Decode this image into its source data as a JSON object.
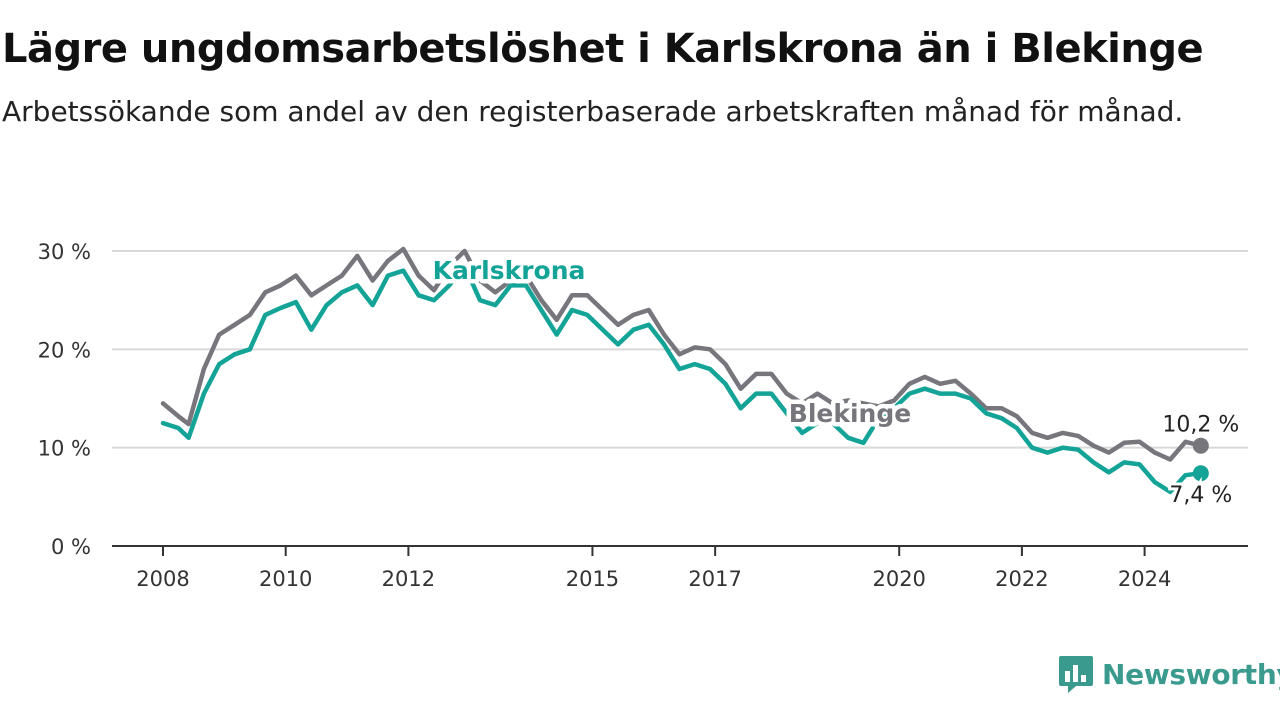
{
  "title": "Lägre ungdomsarbetslöshet i Karlskrona än i Blekinge",
  "subtitle": "Arbetssökande som andel av den registerbaserade arbetskraften månad för månad.",
  "brand": "Newsworthy",
  "colors": {
    "karlskrona": "#13a397",
    "blekinge": "#77767c",
    "grid": "#d9d9d9",
    "axis": "#333333"
  },
  "chart_data": {
    "type": "line",
    "title": "Lägre ungdomsarbetslöshet i Karlskrona än i Blekinge",
    "xlabel": "",
    "ylabel": "",
    "x_ticks": [
      "2008",
      "2010",
      "2012",
      "2015",
      "2017",
      "2020",
      "2022",
      "2024"
    ],
    "y_ticks": [
      "0 %",
      "10 %",
      "20 %",
      "30 %"
    ],
    "ylim": [
      0,
      30
    ],
    "grid": true,
    "series": [
      {
        "name": "Blekinge",
        "color": "#77767c",
        "end_label": "10,2 %",
        "points": [
          [
            "2008-01",
            14.5
          ],
          [
            "2008-04",
            13.2
          ],
          [
            "2008-06",
            12.4
          ],
          [
            "2008-09",
            18
          ],
          [
            "2008-12",
            21.5
          ],
          [
            "2009-03",
            22.5
          ],
          [
            "2009-06",
            23.5
          ],
          [
            "2009-09",
            25.8
          ],
          [
            "2009-12",
            26.5
          ],
          [
            "2010-03",
            27.5
          ],
          [
            "2010-06",
            25.5
          ],
          [
            "2010-09",
            26.5
          ],
          [
            "2010-12",
            27.5
          ],
          [
            "2011-03",
            29.5
          ],
          [
            "2011-06",
            27
          ],
          [
            "2011-09",
            29
          ],
          [
            "2011-12",
            30.2
          ],
          [
            "2012-03",
            27.5
          ],
          [
            "2012-06",
            26
          ],
          [
            "2012-09",
            28.5
          ],
          [
            "2012-12",
            30
          ],
          [
            "2013-03",
            27
          ],
          [
            "2013-06",
            25.8
          ],
          [
            "2013-09",
            27
          ],
          [
            "2013-12",
            27.5
          ],
          [
            "2014-03",
            25
          ],
          [
            "2014-06",
            23
          ],
          [
            "2014-09",
            25.5
          ],
          [
            "2014-12",
            25.5
          ],
          [
            "2015-03",
            24
          ],
          [
            "2015-06",
            22.5
          ],
          [
            "2015-09",
            23.5
          ],
          [
            "2015-12",
            24
          ],
          [
            "2016-03",
            21.5
          ],
          [
            "2016-06",
            19.5
          ],
          [
            "2016-09",
            20.2
          ],
          [
            "2016-12",
            20
          ],
          [
            "2017-03",
            18.5
          ],
          [
            "2017-06",
            16
          ],
          [
            "2017-09",
            17.5
          ],
          [
            "2017-12",
            17.5
          ],
          [
            "2018-03",
            15.5
          ],
          [
            "2018-06",
            14.5
          ],
          [
            "2018-09",
            15.5
          ],
          [
            "2018-12",
            14.5
          ],
          [
            "2019-03",
            14.8
          ],
          [
            "2019-06",
            14.5
          ],
          [
            "2019-09",
            14.2
          ],
          [
            "2019-12",
            14.8
          ],
          [
            "2020-03",
            16.5
          ],
          [
            "2020-06",
            17.2
          ],
          [
            "2020-09",
            16.5
          ],
          [
            "2020-12",
            16.8
          ],
          [
            "2021-03",
            15.5
          ],
          [
            "2021-06",
            14
          ],
          [
            "2021-09",
            14
          ],
          [
            "2021-12",
            13.2
          ],
          [
            "2022-03",
            11.5
          ],
          [
            "2022-06",
            11
          ],
          [
            "2022-09",
            11.5
          ],
          [
            "2022-12",
            11.2
          ],
          [
            "2023-03",
            10.2
          ],
          [
            "2023-06",
            9.5
          ],
          [
            "2023-09",
            10.5
          ],
          [
            "2023-12",
            10.6
          ],
          [
            "2024-03",
            9.5
          ],
          [
            "2024-06",
            8.8
          ],
          [
            "2024-09",
            10.6
          ],
          [
            "2024-12",
            10.2
          ]
        ]
      },
      {
        "name": "Karlskrona",
        "color": "#13a397",
        "end_label": "7,4 %",
        "points": [
          [
            "2008-01",
            12.5
          ],
          [
            "2008-04",
            12
          ],
          [
            "2008-06",
            11
          ],
          [
            "2008-09",
            15.5
          ],
          [
            "2008-12",
            18.5
          ],
          [
            "2009-03",
            19.5
          ],
          [
            "2009-06",
            20
          ],
          [
            "2009-09",
            23.5
          ],
          [
            "2009-12",
            24.2
          ],
          [
            "2010-03",
            24.8
          ],
          [
            "2010-06",
            22
          ],
          [
            "2010-09",
            24.5
          ],
          [
            "2010-12",
            25.8
          ],
          [
            "2011-03",
            26.5
          ],
          [
            "2011-06",
            24.5
          ],
          [
            "2011-09",
            27.5
          ],
          [
            "2011-12",
            28
          ],
          [
            "2012-03",
            25.5
          ],
          [
            "2012-06",
            25
          ],
          [
            "2012-09",
            26.5
          ],
          [
            "2012-12",
            28.5
          ],
          [
            "2013-03",
            25
          ],
          [
            "2013-06",
            24.5
          ],
          [
            "2013-09",
            26.5
          ],
          [
            "2013-12",
            26.5
          ],
          [
            "2014-03",
            24
          ],
          [
            "2014-06",
            21.5
          ],
          [
            "2014-09",
            24
          ],
          [
            "2014-12",
            23.5
          ],
          [
            "2015-03",
            22
          ],
          [
            "2015-06",
            20.5
          ],
          [
            "2015-09",
            22
          ],
          [
            "2015-12",
            22.5
          ],
          [
            "2016-03",
            20.5
          ],
          [
            "2016-06",
            18
          ],
          [
            "2016-09",
            18.5
          ],
          [
            "2016-12",
            18
          ],
          [
            "2017-03",
            16.5
          ],
          [
            "2017-06",
            14
          ],
          [
            "2017-09",
            15.5
          ],
          [
            "2017-12",
            15.5
          ],
          [
            "2018-03",
            13.5
          ],
          [
            "2018-06",
            11.5
          ],
          [
            "2018-09",
            12.5
          ],
          [
            "2018-12",
            12.5
          ],
          [
            "2019-03",
            11
          ],
          [
            "2019-06",
            10.5
          ],
          [
            "2019-09",
            13
          ],
          [
            "2019-12",
            14
          ],
          [
            "2020-03",
            15.5
          ],
          [
            "2020-06",
            16
          ],
          [
            "2020-09",
            15.5
          ],
          [
            "2020-12",
            15.5
          ],
          [
            "2021-03",
            15
          ],
          [
            "2021-06",
            13.5
          ],
          [
            "2021-09",
            13
          ],
          [
            "2021-12",
            12
          ],
          [
            "2022-03",
            10
          ],
          [
            "2022-06",
            9.5
          ],
          [
            "2022-09",
            10
          ],
          [
            "2022-12",
            9.8
          ],
          [
            "2023-03",
            8.5
          ],
          [
            "2023-06",
            7.5
          ],
          [
            "2023-09",
            8.5
          ],
          [
            "2023-12",
            8.3
          ],
          [
            "2024-03",
            6.5
          ],
          [
            "2024-06",
            5.5
          ],
          [
            "2024-09",
            7.2
          ],
          [
            "2024-12",
            7.4
          ]
        ]
      }
    ]
  }
}
